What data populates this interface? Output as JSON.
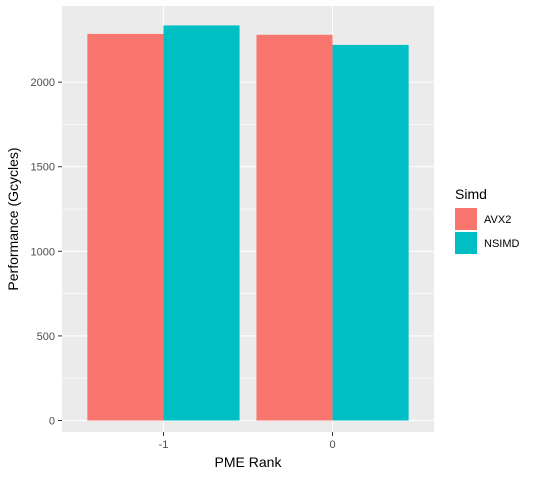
{
  "chart_data": {
    "type": "bar",
    "categories": [
      "-1",
      "0"
    ],
    "series": [
      {
        "name": "AVX2",
        "values": [
          2285,
          2280
        ]
      },
      {
        "name": "NSIMD",
        "values": [
          2335,
          2220
        ]
      }
    ],
    "xlabel": "PME Rank",
    "ylabel": "Performance (Gcycles)",
    "ylim": [
      -68,
      2450
    ],
    "yticks": [
      0,
      500,
      1000,
      1500,
      2000
    ],
    "ytick_labels": [
      "0",
      "500",
      "1000",
      "1500",
      "2000"
    ],
    "legend": {
      "title": "Simd",
      "placement": "right"
    },
    "colors": {
      "AVX2": "#F8766D",
      "NSIMD": "#00BFC4"
    },
    "panel_background": "#EBEBEB",
    "grid": true
  }
}
